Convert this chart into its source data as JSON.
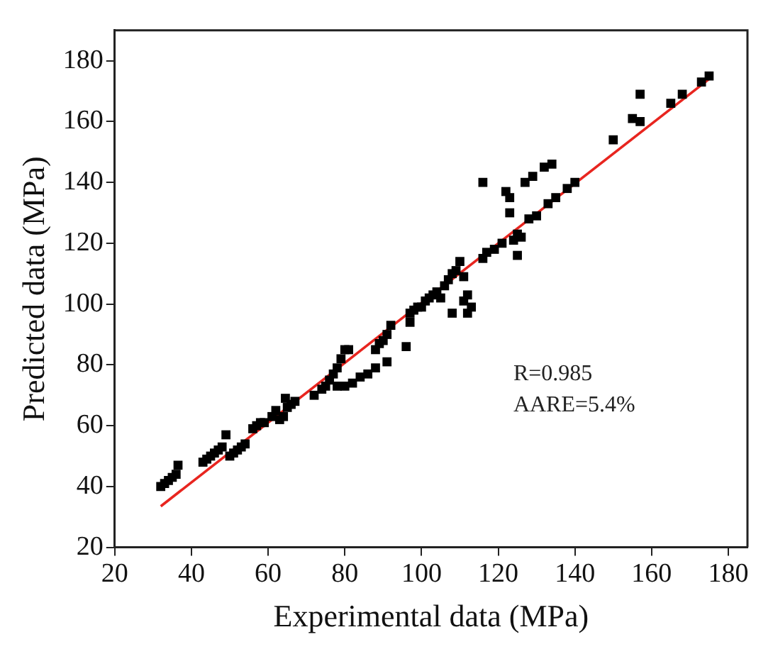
{
  "chart_data": {
    "type": "scatter",
    "xlabel": "Experimental data (MPa)",
    "ylabel": "Predicted data (MPa)",
    "xlim": [
      20,
      185
    ],
    "ylim": [
      20,
      190
    ],
    "xticks": [
      20,
      40,
      60,
      80,
      100,
      120,
      140,
      160,
      180
    ],
    "yticks": [
      20,
      40,
      60,
      80,
      100,
      120,
      140,
      160,
      180
    ],
    "grid": false,
    "legend": false,
    "marker": "square",
    "annotations": [
      "R=0.985",
      "AARE=5.4%"
    ],
    "series": [
      {
        "type": "scatter",
        "color": "#000000",
        "x": [
          32,
          33,
          34,
          35,
          36,
          36.5,
          43,
          44,
          45,
          46,
          47,
          48,
          49,
          50,
          51,
          52,
          53,
          54,
          56,
          57,
          58,
          59,
          61,
          62,
          63,
          64,
          64.5,
          65,
          66,
          67,
          72,
          74,
          75,
          76,
          77,
          78,
          78,
          79,
          80,
          81,
          80,
          82,
          84,
          86,
          88,
          88,
          89,
          90,
          91,
          91,
          92,
          96,
          97,
          97,
          98,
          99,
          100,
          101,
          102,
          103,
          104,
          105,
          106,
          107,
          108,
          108,
          109,
          110,
          111,
          111,
          112,
          112,
          113,
          116,
          116,
          117,
          119,
          121,
          122,
          123,
          123,
          124,
          125,
          125,
          126,
          127,
          128,
          129,
          130,
          132,
          133,
          134,
          135,
          138,
          140,
          150,
          155,
          157,
          157,
          165,
          168,
          173,
          175
        ],
        "values": [
          40,
          41,
          42,
          43,
          44,
          47,
          48,
          49,
          50,
          51,
          52,
          53,
          57,
          50,
          51,
          52,
          53,
          54,
          59,
          60,
          61,
          61,
          63,
          65,
          62,
          63,
          69,
          66,
          67,
          68,
          70,
          72,
          73,
          75,
          77,
          79,
          73,
          82,
          85,
          85,
          73,
          74,
          76,
          77,
          79,
          85,
          87,
          88,
          81,
          90,
          93,
          86,
          94,
          97,
          98,
          99,
          99,
          101,
          102,
          103,
          104,
          102,
          106,
          108,
          97,
          110,
          111,
          114,
          109,
          101,
          103,
          97,
          99,
          140,
          115,
          117,
          118,
          120,
          137,
          135,
          130,
          121,
          116,
          123,
          122,
          140,
          128,
          142,
          129,
          145,
          133,
          146,
          135,
          138,
          140,
          154,
          161,
          169,
          160,
          166,
          169,
          173,
          175
        ]
      },
      {
        "type": "line",
        "color": "#e8251f",
        "marker": "none",
        "x": [
          32,
          175
        ],
        "values": [
          33.5,
          174
        ]
      }
    ]
  }
}
